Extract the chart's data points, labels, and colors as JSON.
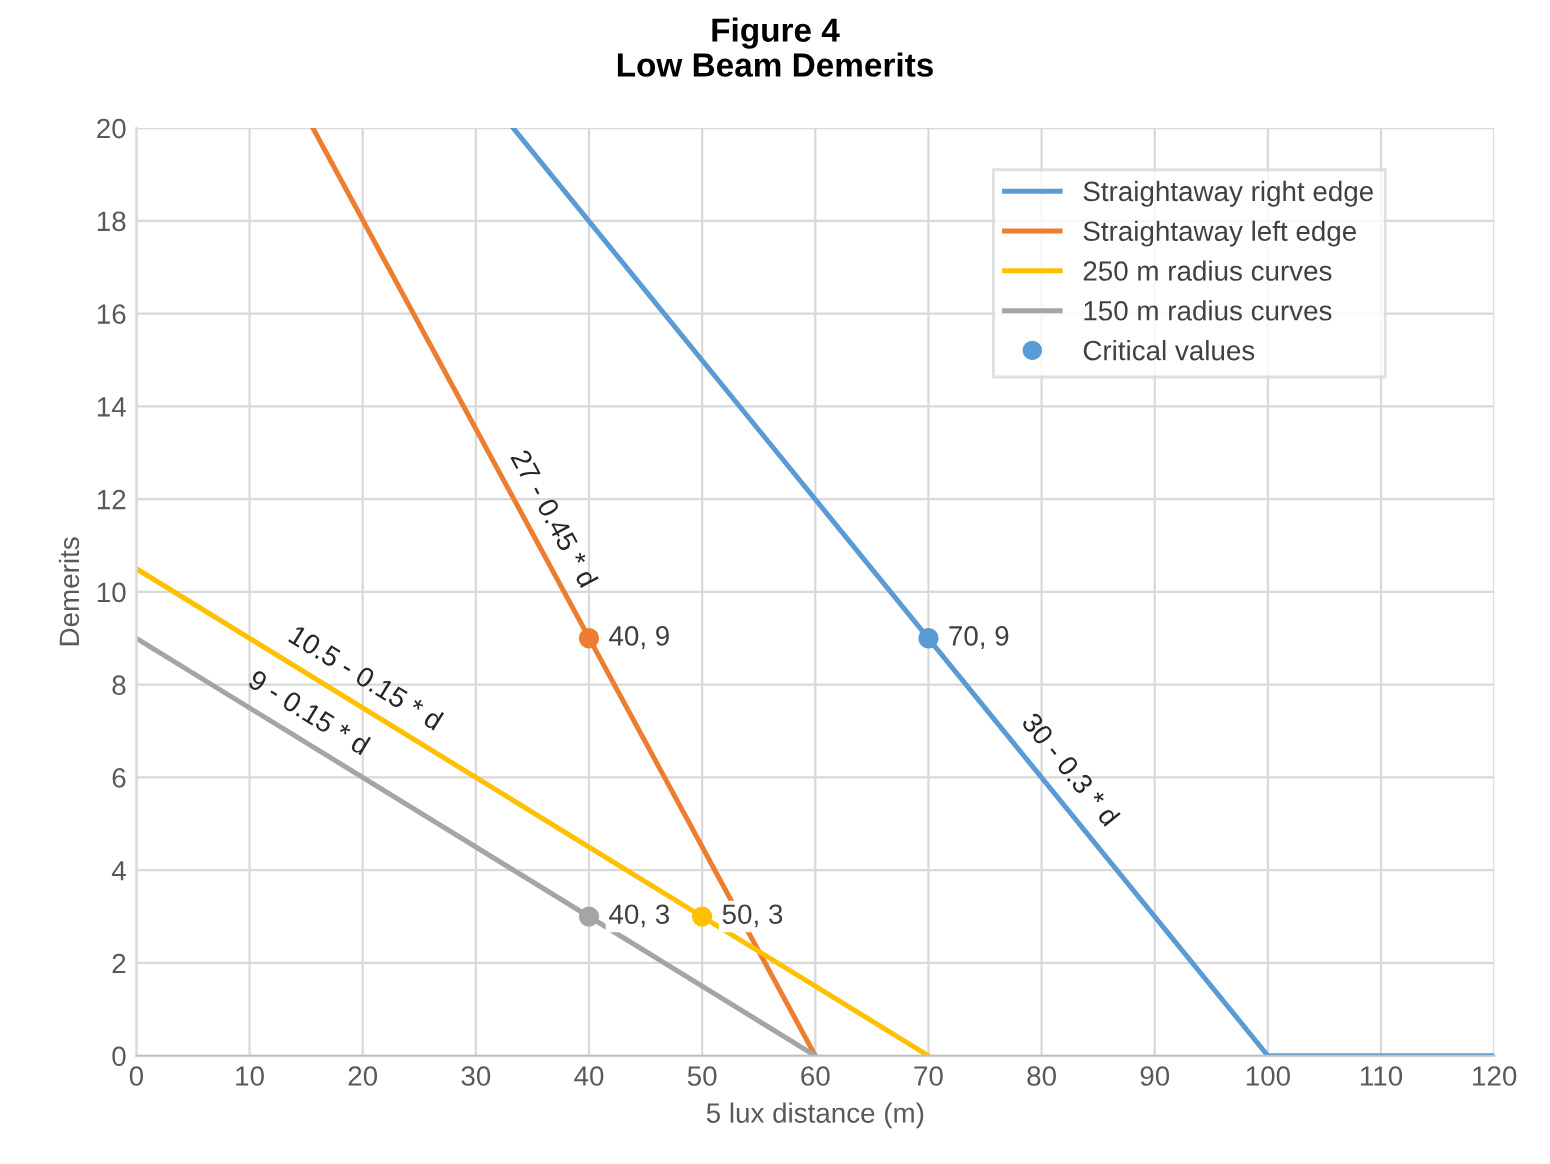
{
  "chart_data": {
    "type": "line",
    "title": "Figure 4",
    "subtitle": "Low Beam Demerits",
    "xlabel": "5 lux distance (m)",
    "ylabel": "Demerits",
    "series": [
      {
        "name": "Straightaway right edge",
        "color": "#5b9bd5",
        "x": [
          33.3,
          100,
          120
        ],
        "values": [
          20,
          0,
          0
        ]
      },
      {
        "name": "Straightaway left edge",
        "color": "#ed7d31",
        "x": [
          15.6,
          60
        ],
        "values": [
          20,
          0
        ]
      },
      {
        "name": "250 m radius curves",
        "color": "#ffc000",
        "x": [
          0,
          70
        ],
        "values": [
          10.5,
          0
        ]
      },
      {
        "name": "150 m radius curves",
        "color": "#a5a5a5",
        "x": [
          0,
          60
        ],
        "values": [
          9,
          0
        ]
      },
      {
        "name": "Critical values",
        "type": "scatter",
        "color": "#5b9bd5",
        "x": [
          40,
          70,
          40,
          50
        ],
        "values": [
          9,
          9,
          3,
          3
        ],
        "colors": [
          "#ed7d31",
          "#5b9bd5",
          "#a5a5a5",
          "#ffc000"
        ]
      }
    ],
    "annotations": [
      {
        "text": "40, 9",
        "x": 40,
        "y": 9
      },
      {
        "text": "70, 9",
        "x": 70,
        "y": 9
      },
      {
        "text": "40, 3",
        "x": 40,
        "y": 3
      },
      {
        "text": "50, 3",
        "x": 50,
        "y": 3
      },
      {
        "text": "27 - 0.45 * d",
        "x": 34.8,
        "y": 11.3
      },
      {
        "text": "30 - 0.3 * d",
        "x": 80.7,
        "y": 5.8
      },
      {
        "text": "10.5 - 0.15 * d",
        "x": 19,
        "y": 7.65
      },
      {
        "text": "9 - 0.15 * d",
        "x": 14,
        "y": 6.9
      }
    ],
    "xlim": [
      0,
      120
    ],
    "xticks": [
      0,
      10,
      20,
      30,
      40,
      50,
      60,
      70,
      80,
      90,
      100,
      110,
      120
    ],
    "ylim": [
      0,
      20
    ],
    "yticks": [
      0,
      2,
      4,
      6,
      8,
      10,
      12,
      14,
      16,
      18,
      20
    ],
    "grid": true,
    "legend": "top right"
  }
}
